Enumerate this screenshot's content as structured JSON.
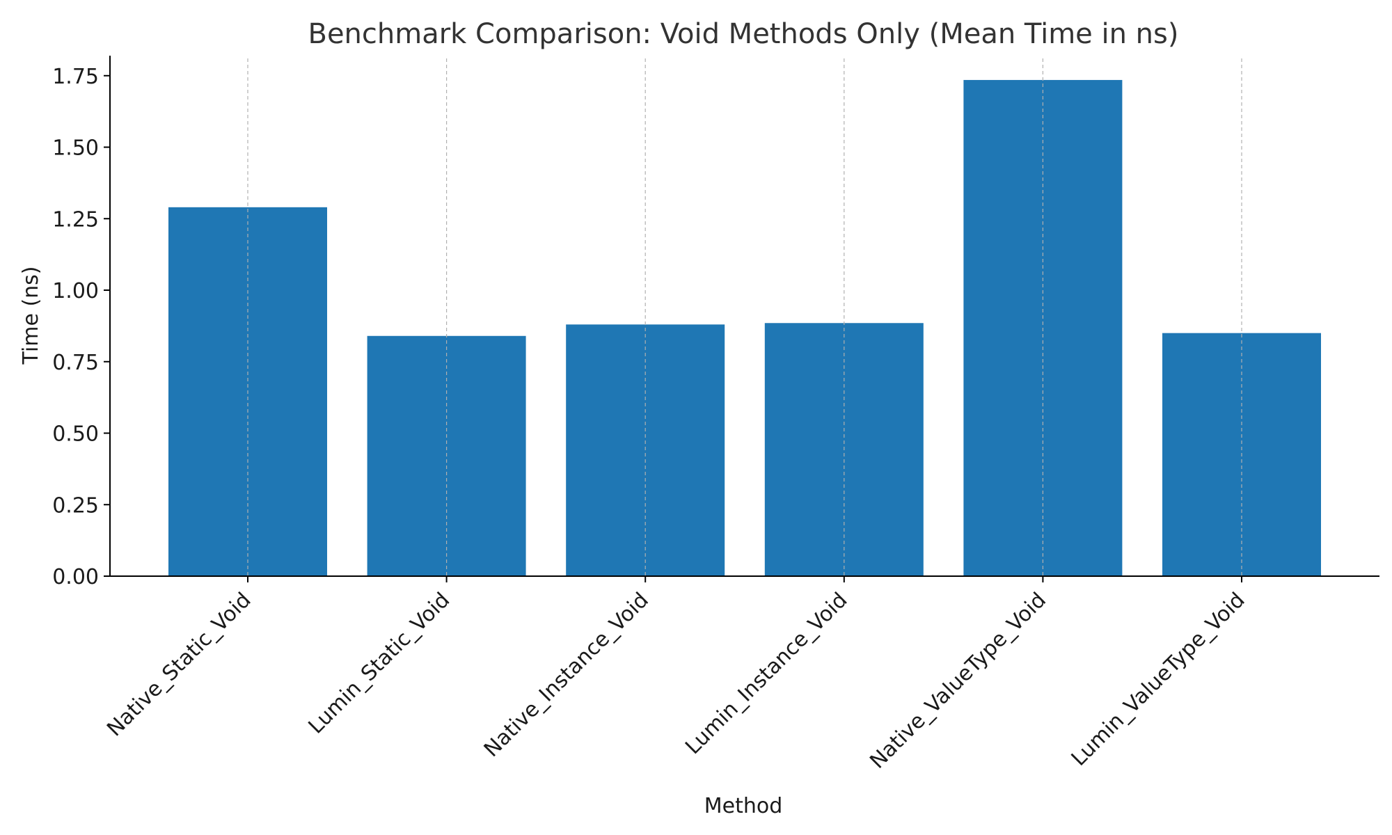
{
  "chart_data": {
    "type": "bar",
    "title": "Benchmark Comparison: Void Methods Only (Mean Time in ns)",
    "xlabel": "Method",
    "ylabel": "Time (ns)",
    "categories": [
      "Native_Static_Void",
      "Lumin_Static_Void",
      "Native_Instance_Void",
      "Lumin_Instance_Void",
      "Native_ValueType_Void",
      "Lumin_ValueType_Void"
    ],
    "values": [
      1.29,
      0.84,
      0.88,
      0.885,
      1.735,
      0.85
    ],
    "ylim": [
      0,
      1.82
    ],
    "yticks": [
      "0.00",
      "0.25",
      "0.50",
      "0.75",
      "1.00",
      "1.25",
      "1.50",
      "1.75"
    ],
    "grid": "x-dashed",
    "bar_color": "#1f77b4"
  }
}
